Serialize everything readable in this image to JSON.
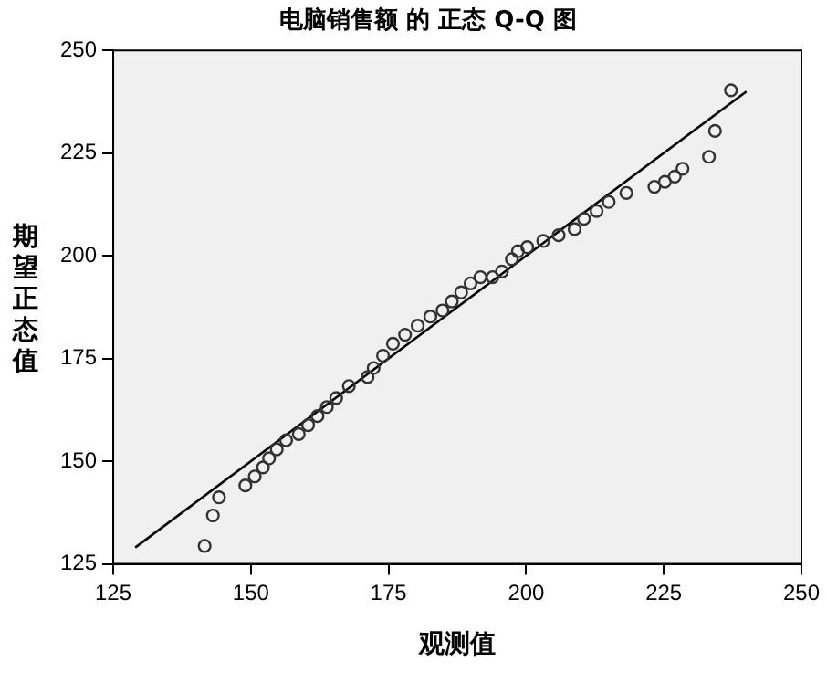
{
  "chart_data": {
    "type": "scatter",
    "title": "电脑销售额 的 正态 Q-Q 图",
    "xlabel": "观测值",
    "ylabel": "期望正态值",
    "xlim": [
      125,
      250
    ],
    "xticks": [
      125,
      150,
      175,
      200,
      225,
      250
    ],
    "ylim": [
      125,
      250
    ],
    "yticks": [
      125,
      150,
      175,
      200,
      225,
      250
    ],
    "grid": false,
    "legend": false,
    "series": [
      {
        "type": "scatter",
        "marker": "circle",
        "color": "#333333",
        "x": [
          141.6,
          143.1,
          144.2,
          149.0,
          150.7,
          152.2,
          153.3,
          154.7,
          156.4,
          158.7,
          160.4,
          162.1,
          163.8,
          165.5,
          167.8,
          171.2,
          172.3,
          174.0,
          175.8,
          178.0,
          180.3,
          182.6,
          184.8,
          186.5,
          188.2,
          189.9,
          191.7,
          193.9,
          195.6,
          197.4,
          198.5,
          200.2,
          203.1,
          205.9,
          208.8,
          210.5,
          212.8,
          215.0,
          218.2,
          223.3,
          225.2,
          227.0,
          228.4,
          233.2,
          234.3,
          237.2
        ],
        "values": [
          129.4,
          136.8,
          141.2,
          144.1,
          146.3,
          148.5,
          150.7,
          152.9,
          155.1,
          156.6,
          158.8,
          161.0,
          163.2,
          165.4,
          168.3,
          170.5,
          172.7,
          175.7,
          178.6,
          180.8,
          183.0,
          185.2,
          186.7,
          188.9,
          191.1,
          193.3,
          194.8,
          194.8,
          196.2,
          199.2,
          201.1,
          202.1,
          203.6,
          205.0,
          206.5,
          209.0,
          210.9,
          213.1,
          215.3,
          216.8,
          218.0,
          219.3,
          221.2,
          224.1,
          230.4,
          240.3
        ]
      },
      {
        "type": "line",
        "marker": "none",
        "color": "#000000",
        "line_style": "solid",
        "x": [
          129,
          240
        ],
        "values": [
          129,
          240
        ]
      }
    ]
  }
}
